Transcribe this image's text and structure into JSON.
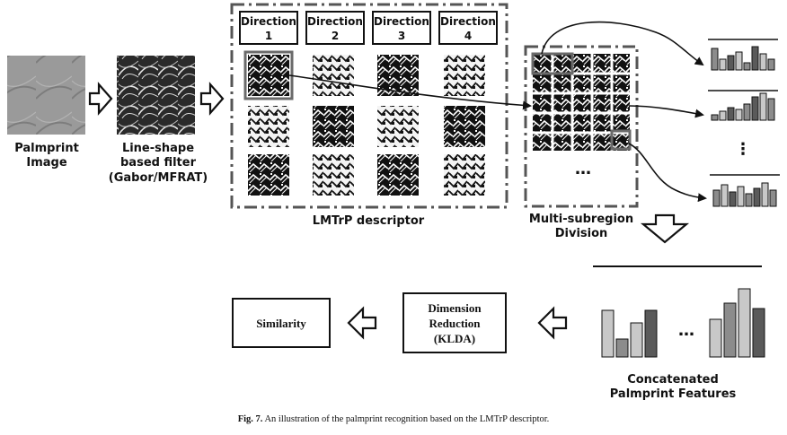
{
  "labels": {
    "palmprint_image": [
      "Palmprint",
      "Image"
    ],
    "line_filter": [
      "Line-shape",
      "based filter",
      "(Gabor/MFRAT)"
    ],
    "lmtrp_descriptor": "LMTrP descriptor",
    "multi_subregion": [
      "Multi-subregion",
      "Division"
    ],
    "concatenated": [
      "Concatenated",
      "Palmprint Features"
    ],
    "ellipsis_grid": "…",
    "ellipsis_hist": "⋮",
    "ellipsis_bars": "…"
  },
  "directions": [
    {
      "word": "Direction",
      "num": "1"
    },
    {
      "word": "Direction",
      "num": "2"
    },
    {
      "word": "Direction",
      "num": "3"
    },
    {
      "word": "Direction",
      "num": "4"
    }
  ],
  "process": {
    "similarity": "Similarity",
    "dimension_reduction": [
      "Dimension",
      "Reduction",
      "(KLDA)"
    ]
  },
  "caption": {
    "prefix": "Fig. 7.",
    "text": " An illustration of the palmprint recognition based on the LMTrP descriptor."
  },
  "colors": {
    "stroke": "#111111",
    "frame": "#555555",
    "bar_light": "#c8c8c8",
    "bar_mid": "#8c8c8c",
    "bar_dark": "#5a5a5a",
    "highlight": "#6a6a6a"
  }
}
